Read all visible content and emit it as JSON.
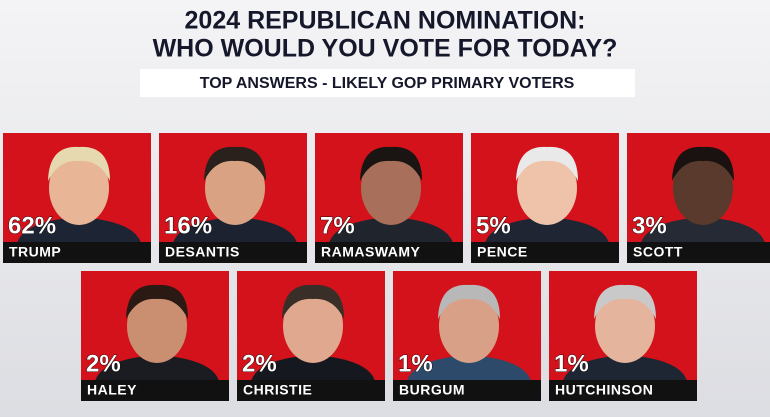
{
  "chart_data": {
    "type": "tiles",
    "title": [
      "2024 REPUBLICAN NOMINATION:",
      "WHO WOULD YOU VOTE FOR TODAY?"
    ],
    "subtitle": "TOP ANSWERS - LIKELY GOP PRIMARY VOTERS",
    "categories": [
      "TRUMP",
      "DESANTIS",
      "RAMASWAMY",
      "PENCE",
      "SCOTT",
      "HALEY",
      "CHRISTIE",
      "BURGUM",
      "HUTCHINSON"
    ],
    "values": [
      62,
      16,
      7,
      5,
      3,
      2,
      2,
      1,
      1
    ],
    "value_labels": [
      "62%",
      "16%",
      "7%",
      "5%",
      "3%",
      "2%",
      "2%",
      "1%",
      "1%"
    ],
    "color": "#d3121b"
  }
}
